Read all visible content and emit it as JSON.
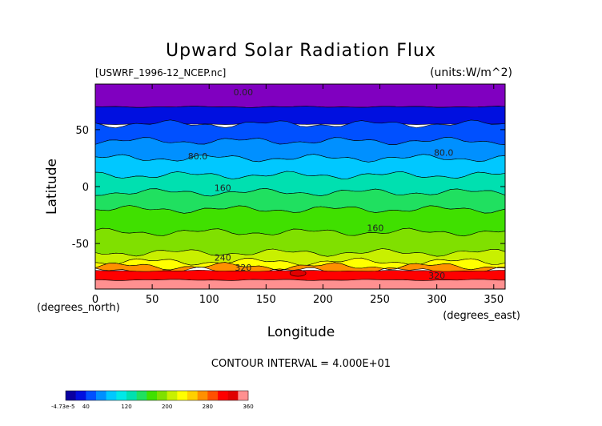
{
  "chart_data": {
    "type": "heatmap",
    "title": "Upward Solar Radiation Flux",
    "source_label": "[USWRF_1996-12_NCEP.nc]",
    "units_label": "(units:W/m^2)",
    "xlabel": "Longitude",
    "ylabel": "Latitude",
    "x_unit_label": "(degrees_east)",
    "y_unit_label": "(degrees_north)",
    "xlim": [
      0,
      360
    ],
    "ylim": [
      -90,
      90
    ],
    "x_ticks": [
      "0",
      "50",
      "100",
      "150",
      "200",
      "250",
      "300",
      "350"
    ],
    "x_tick_values": [
      0,
      50,
      100,
      150,
      200,
      250,
      300,
      350
    ],
    "y_ticks": [
      "50",
      "0",
      "-50"
    ],
    "y_tick_values": [
      50,
      0,
      -50
    ],
    "contour_interval_text": "CONTOUR INTERVAL = 4.000E+01",
    "contour_labels": [
      {
        "text": "0.00",
        "lon": 130,
        "lat": 80
      },
      {
        "text": "80.0",
        "lon": 90,
        "lat": 24
      },
      {
        "text": "80.0",
        "lon": 306,
        "lat": 27
      },
      {
        "text": "160",
        "lon": 112,
        "lat": -4
      },
      {
        "text": "160",
        "lon": 246,
        "lat": -39
      },
      {
        "text": "240",
        "lon": 112,
        "lat": -65
      },
      {
        "text": "320",
        "lon": 130,
        "lat": -74
      },
      {
        "text": "320",
        "lon": 300,
        "lat": -81
      }
    ],
    "zonal_profile": [
      {
        "lat": 90,
        "value": 0
      },
      {
        "lat": 70,
        "value": 10
      },
      {
        "lat": 60,
        "value": 30
      },
      {
        "lat": 50,
        "value": 60
      },
      {
        "lat": 40,
        "value": 80
      },
      {
        "lat": 30,
        "value": 95
      },
      {
        "lat": 20,
        "value": 120
      },
      {
        "lat": 10,
        "value": 135
      },
      {
        "lat": 0,
        "value": 145
      },
      {
        "lat": -10,
        "value": 160
      },
      {
        "lat": -20,
        "value": 170
      },
      {
        "lat": -30,
        "value": 180
      },
      {
        "lat": -40,
        "value": 185
      },
      {
        "lat": -50,
        "value": 190
      },
      {
        "lat": -60,
        "value": 210
      },
      {
        "lat": -65,
        "value": 240
      },
      {
        "lat": -70,
        "value": 280
      },
      {
        "lat": -75,
        "value": 330
      },
      {
        "lat": -80,
        "value": 350
      },
      {
        "lat": -90,
        "value": 360
      }
    ],
    "colorbar": {
      "min_label": "-4.73e-5",
      "tick_labels": [
        "40",
        "120",
        "200",
        "280",
        "360"
      ],
      "tick_values": [
        40,
        120,
        200,
        280,
        360
      ],
      "min": 0,
      "max": 360,
      "colors": [
        "#0a00a0",
        "#0010e0",
        "#0050ff",
        "#0090ff",
        "#00c8ff",
        "#00e8e8",
        "#00e0b0",
        "#20e060",
        "#40e000",
        "#80e000",
        "#c8f000",
        "#ffff00",
        "#ffd000",
        "#ff9000",
        "#ff5000",
        "#ff0000",
        "#e00000",
        "#ff9090"
      ]
    },
    "band_colors": [
      {
        "from": 90,
        "to": 70,
        "color": "#8000c0"
      },
      {
        "from": 70,
        "to": 55,
        "color": "#0010e0"
      },
      {
        "from": 55,
        "to": 40,
        "color": "#0050ff"
      },
      {
        "from": 40,
        "to": 25,
        "color": "#0090ff"
      },
      {
        "from": 25,
        "to": 10,
        "color": "#00c8ff"
      },
      {
        "from": 10,
        "to": -5,
        "color": "#00e0b0"
      },
      {
        "from": -5,
        "to": -20,
        "color": "#20e060"
      },
      {
        "from": -20,
        "to": -40,
        "color": "#40e000"
      },
      {
        "from": -40,
        "to": -58,
        "color": "#80e000"
      },
      {
        "from": -58,
        "to": -66,
        "color": "#c8f000"
      },
      {
        "from": -66,
        "to": -70,
        "color": "#ffff00"
      },
      {
        "from": -70,
        "to": -74,
        "color": "#ff9000"
      },
      {
        "from": -74,
        "to": -82,
        "color": "#ff0000"
      },
      {
        "from": -82,
        "to": -90,
        "color": "#ff9090"
      }
    ]
  }
}
